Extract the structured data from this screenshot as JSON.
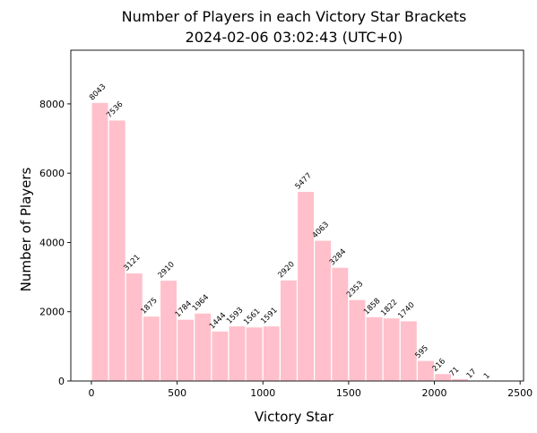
{
  "chart_data": {
    "type": "bar",
    "title_lines": [
      "Number of Players in each Victory Star Brackets",
      "2024-02-06 03:02:43 (UTC+0)"
    ],
    "xlabel": "Victory Star",
    "ylabel": "Number of Players",
    "bin_width": 100,
    "bin_starts": [
      0,
      100,
      200,
      300,
      400,
      500,
      600,
      700,
      800,
      900,
      1000,
      1100,
      1200,
      1300,
      1400,
      1500,
      1600,
      1700,
      1800,
      1900,
      2000,
      2100,
      2200,
      2300
    ],
    "values": [
      8043,
      7536,
      3121,
      1875,
      2910,
      1784,
      1964,
      1444,
      1593,
      1561,
      1591,
      2920,
      5477,
      4063,
      3284,
      2353,
      1858,
      1822,
      1740,
      595,
      216,
      71,
      17,
      1
    ],
    "data_labels": [
      "8043",
      "7536",
      "3121",
      "1875",
      "2910",
      "1784",
      "1964",
      "1444",
      "1593",
      "1561",
      "1591",
      "2920",
      "5477",
      "4063",
      "3284",
      "2353",
      "1858",
      "1822",
      "1740",
      "595",
      "216",
      "71",
      "17",
      "1"
    ],
    "xlim": [
      -120,
      2520
    ],
    "ylim": [
      0,
      9550
    ],
    "x_ticks": [
      0,
      500,
      1000,
      1500,
      2000,
      2500
    ],
    "x_tick_labels": [
      "0",
      "500",
      "1000",
      "1500",
      "2000",
      "2500"
    ],
    "y_ticks": [
      0,
      2000,
      4000,
      6000,
      8000
    ],
    "y_tick_labels": [
      "0",
      "2000",
      "4000",
      "6000",
      "8000"
    ],
    "grid": false,
    "colors": {
      "bar": "#ffc0cb",
      "bar_edge": "#ffffff"
    }
  }
}
